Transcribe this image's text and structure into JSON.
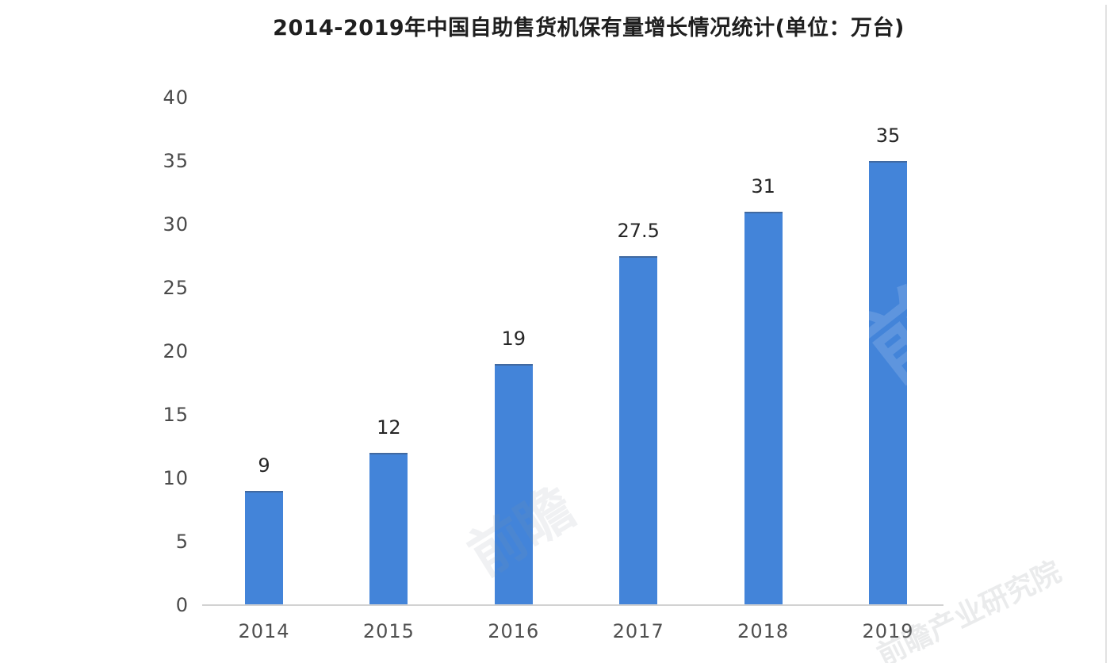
{
  "page": {
    "background": "#ffffff"
  },
  "chart_data": {
    "type": "bar",
    "title": "2014-2019年中国自助售货机保有量增长情况统计(单位：万台)",
    "categories": [
      "2014",
      "2015",
      "2016",
      "2017",
      "2018",
      "2019"
    ],
    "values": [
      9,
      12,
      19,
      27.5,
      31,
      35
    ],
    "value_labels": [
      "9",
      "12",
      "19",
      "27.5",
      "31",
      "35"
    ],
    "xlabel": "",
    "ylabel": "",
    "ylim": [
      0,
      40
    ],
    "yticks": [
      "0",
      "5",
      "10",
      "15",
      "20",
      "25",
      "30",
      "35",
      "40"
    ],
    "grid": false,
    "legend_position": "none",
    "bar_color": "#4384d9",
    "axis_line_color": "#d2d2d2",
    "tick_label_color": "#4a4a4a",
    "value_label_color": "#262626",
    "title_color": "#1f1f1f"
  },
  "watermarks": {
    "bar_2019_text": "前瞻",
    "bar_2016_text": "前瞻",
    "bottom_right_text": "前瞻产业研究院"
  }
}
